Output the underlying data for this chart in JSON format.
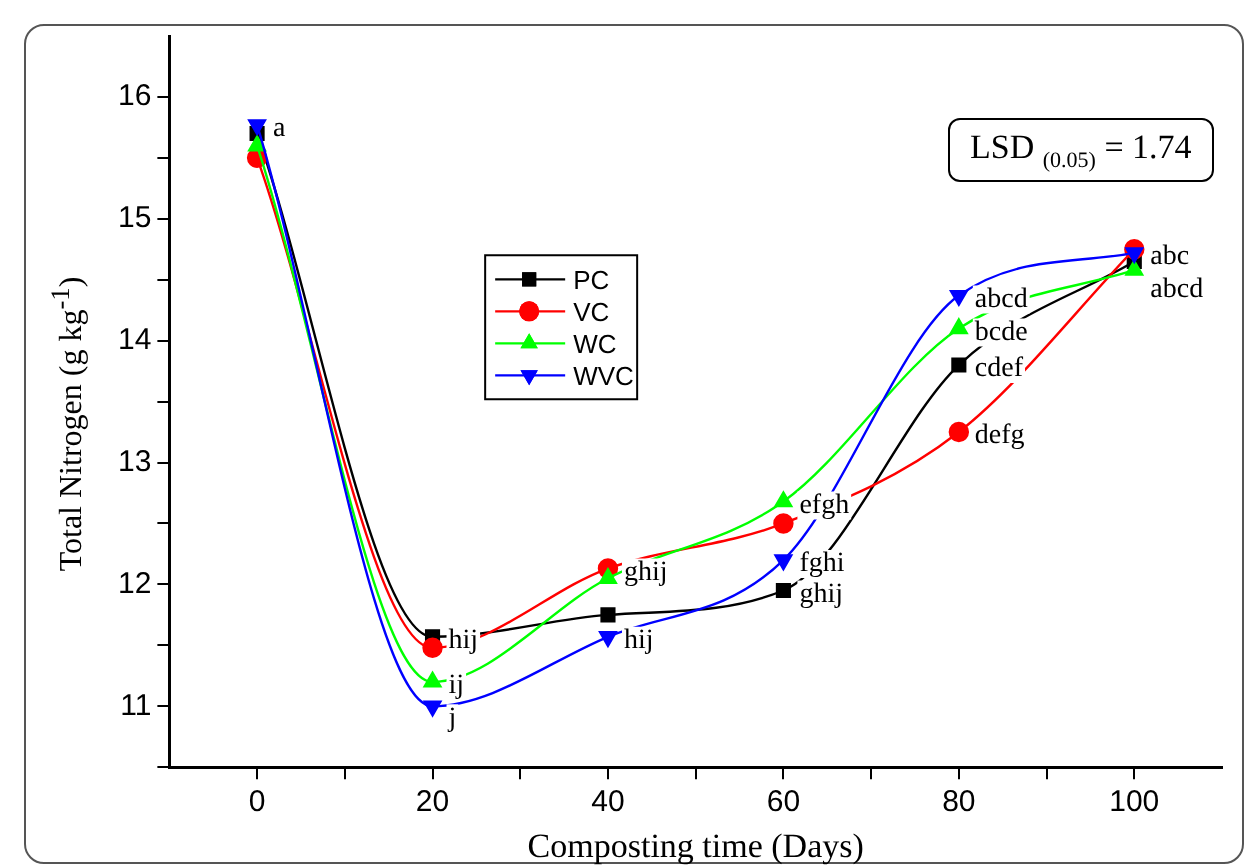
{
  "chart_data": {
    "type": "line",
    "xlabel": "Composting time (Days)",
    "ylabel": "Total Nitrogen (g kg$^{-1}$)",
    "x": [
      0,
      20,
      40,
      60,
      80,
      100
    ],
    "series": [
      {
        "name": "PC",
        "color": "#000000",
        "marker": "square",
        "values": [
          15.7,
          11.57,
          11.75,
          11.95,
          13.8,
          14.65
        ]
      },
      {
        "name": "VC",
        "color": "#ff0000",
        "marker": "circle",
        "values": [
          15.5,
          11.48,
          12.13,
          12.5,
          13.25,
          14.75
        ]
      },
      {
        "name": "WC",
        "color": "#00ff00",
        "marker": "triangle",
        "values": [
          15.6,
          11.2,
          12.05,
          12.68,
          14.1,
          14.58
        ]
      },
      {
        "name": "WVC",
        "color": "#0000ff",
        "marker": "triangle-down",
        "values": [
          15.77,
          11.0,
          11.57,
          12.2,
          14.37,
          14.72
        ]
      }
    ],
    "xlim": [
      -10,
      110
    ],
    "xticks": [
      0,
      {
        "value": 10,
        "label": null
      },
      20,
      {
        "value": 30,
        "label": null
      },
      40,
      {
        "value": 50,
        "label": null
      },
      60,
      {
        "value": 70,
        "label": null
      },
      80,
      {
        "value": 90,
        "label": null
      },
      100
    ],
    "ylim": [
      10.5,
      16.5
    ],
    "yticks": [
      {
        "value": 10.5,
        "label": null
      },
      11,
      {
        "value": 11.5,
        "label": null
      },
      12,
      {
        "value": 12.5,
        "label": null
      },
      13,
      {
        "value": 13.5,
        "label": null
      },
      14,
      {
        "value": 14.5,
        "label": null
      },
      15,
      {
        "value": 15.5,
        "label": null
      },
      16
    ],
    "grid": false,
    "legend": "left",
    "annotations": [
      "LSD $_{(0.05)}$ = 1.74",
      {
        "text": "a",
        "x": 0,
        "y": 15.77
      },
      {
        "text": "hij",
        "x": 20,
        "y": 11.57
      },
      {
        "text": "ij",
        "x": 20,
        "y": 11.2
      },
      {
        "text": "j",
        "x": 20,
        "y": 11.0
      },
      {
        "text": "ghij",
        "x": 40,
        "y": 12.13
      },
      {
        "text": "hij",
        "x": 40,
        "y": 11.57
      },
      {
        "text": "efgh",
        "x": 60,
        "y": 12.68
      },
      {
        "text": "fghi",
        "x": 60,
        "y": 12.2
      },
      {
        "text": "ghij",
        "x": 60,
        "y": 11.95
      },
      {
        "text": "abcd",
        "x": 80,
        "y": 14.37
      },
      {
        "text": "bcde",
        "x": 80,
        "y": 14.1
      },
      {
        "text": "cdef",
        "x": 80,
        "y": 13.8
      },
      {
        "text": "defg",
        "x": 80,
        "y": 13.25
      },
      {
        "text": "abc",
        "x": 100,
        "y": 14.72
      },
      {
        "text": "abcd",
        "x": 100,
        "y": 14.58
      }
    ]
  }
}
